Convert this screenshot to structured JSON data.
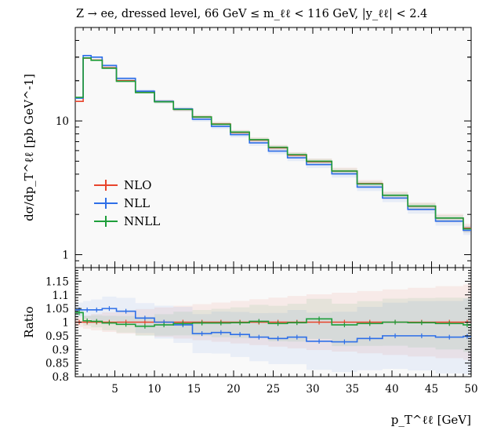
{
  "title": "Z → ee, dressed level, 66 GeV ≤ m_ℓℓ < 116 GeV, |y_ℓℓ| < 2.4",
  "chart_data": [
    {
      "type": "line",
      "panel": "main",
      "ylabel": "dσ/dp_T^ℓℓ [pb GeV^-1]",
      "yscale": "log",
      "ylim": [
        0.8,
        50
      ],
      "xlim": [
        0,
        50
      ],
      "ytick_labels": [
        "1",
        "10"
      ],
      "legend": "center-left",
      "x_bins": [
        0,
        1,
        2,
        3.4,
        5.2,
        7.6,
        10,
        12.4,
        14.8,
        17.2,
        19.6,
        22,
        24.4,
        26.8,
        29.2,
        32.4,
        35.6,
        38.8,
        42,
        45.5,
        49,
        50
      ],
      "series": [
        {
          "name": "NLO",
          "color": "#e8452c",
          "values": [
            14.0,
            29.5,
            28.5,
            25.0,
            20.0,
            16.5,
            14.0,
            12.2,
            10.7,
            9.5,
            8.2,
            7.2,
            6.3,
            5.55,
            4.95,
            4.22,
            3.4,
            2.78,
            2.3,
            1.88,
            1.58,
            1.28
          ]
        },
        {
          "name": "NLL",
          "color": "#2e6fe8",
          "values": [
            14.8,
            30.8,
            30.0,
            26.0,
            20.8,
            16.7,
            14.0,
            12.3,
            10.3,
            9.1,
            7.9,
            6.85,
            5.95,
            5.3,
            4.72,
            4.02,
            3.2,
            2.65,
            2.18,
            1.78,
            1.52,
            1.22
          ]
        },
        {
          "name": "NNLL",
          "color": "#1e9e3a",
          "values": [
            15.0,
            29.6,
            28.4,
            24.8,
            19.8,
            16.3,
            13.9,
            12.2,
            10.7,
            9.45,
            8.25,
            7.25,
            6.35,
            5.6,
            5.0,
            4.22,
            3.38,
            2.78,
            2.31,
            1.88,
            1.56,
            1.27
          ]
        }
      ]
    },
    {
      "type": "line",
      "panel": "ratio",
      "ylabel": "Ratio",
      "xlabel": "p_T^ℓℓ [GeV]",
      "xlim": [
        0,
        50
      ],
      "ylim": [
        0.8,
        1.2
      ],
      "xtick_labels": [
        "5",
        "10",
        "15",
        "20",
        "25",
        "30",
        "35",
        "40",
        "45",
        "50"
      ],
      "ytick_labels": [
        "0.8",
        "0.85",
        "0.9",
        "0.95",
        "1",
        "1.05",
        "1.1",
        "1.15"
      ],
      "x_bins": [
        0,
        1,
        2,
        3.4,
        5.2,
        7.6,
        10,
        12.4,
        14.8,
        17.2,
        19.6,
        22,
        24.4,
        26.8,
        29.2,
        32.4,
        35.6,
        38.8,
        42,
        45.5,
        49,
        50
      ],
      "series": [
        {
          "name": "NLO",
          "color": "#e8452c",
          "values": [
            1.0,
            1.0,
            1.0,
            1.0,
            1.0,
            1.0,
            1.0,
            1.0,
            1.0,
            1.0,
            1.0,
            1.0,
            1.0,
            1.0,
            1.0,
            1.0,
            1.0,
            1.0,
            1.0,
            1.0,
            1.0,
            1.0
          ]
        },
        {
          "name": "NLL",
          "color": "#2e6fe8",
          "values": [
            1.045,
            1.045,
            1.045,
            1.05,
            1.04,
            1.015,
            1.0,
            0.99,
            0.958,
            0.962,
            0.955,
            0.945,
            0.94,
            0.945,
            0.93,
            0.928,
            0.94,
            0.95,
            0.95,
            0.945,
            0.948,
            0.948
          ]
        },
        {
          "name": "NNLL",
          "color": "#1e9e3a",
          "values": [
            1.035,
            1.005,
            1.003,
            0.997,
            0.992,
            0.985,
            0.99,
            0.995,
            0.997,
            0.997,
            0.998,
            1.003,
            0.995,
            0.998,
            1.012,
            0.99,
            0.995,
            1.0,
            0.998,
            0.995,
            0.99,
            1.0
          ]
        }
      ]
    }
  ]
}
